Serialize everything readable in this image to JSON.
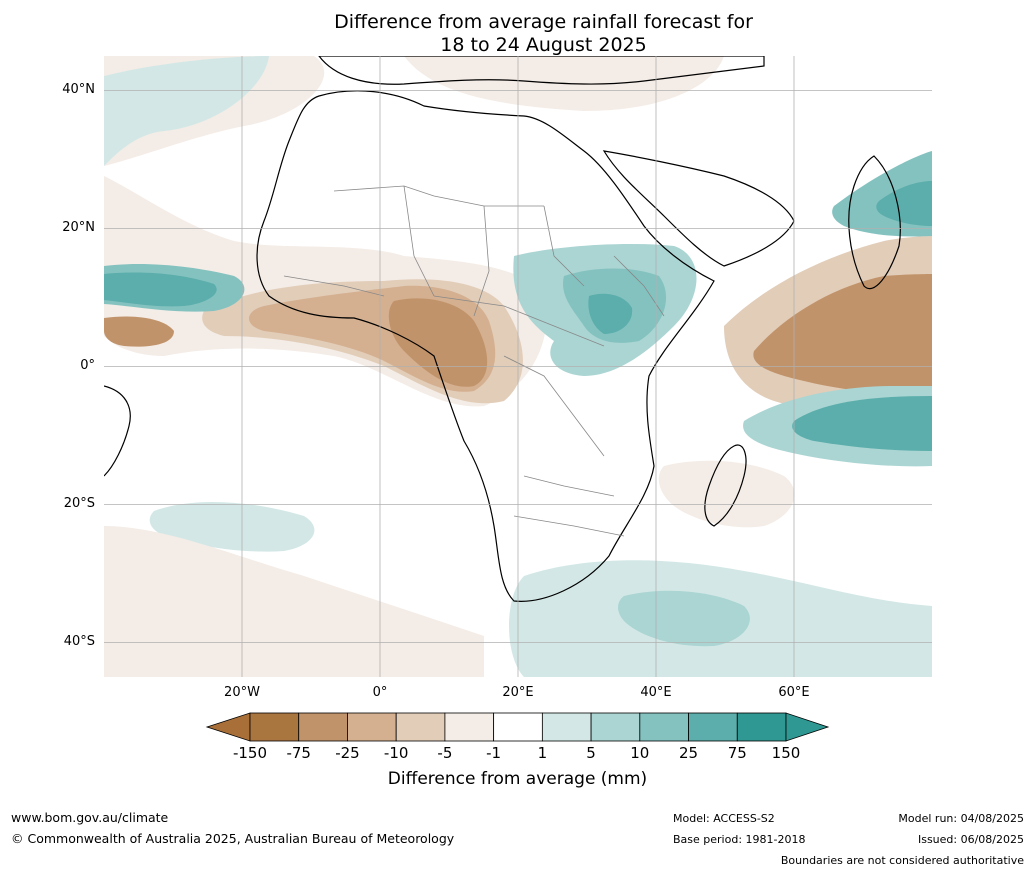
{
  "title": {
    "line1": "Difference from average rainfall forecast for",
    "line2": "18 to 24 August 2025"
  },
  "map": {
    "region": "Africa and surrounding oceans",
    "lat_range": [
      -45,
      45
    ],
    "lon_range": [
      -40,
      80
    ],
    "lat_ticks": [
      {
        "value": 40,
        "label": "40°N"
      },
      {
        "value": 20,
        "label": "20°N"
      },
      {
        "value": 0,
        "label": "0°"
      },
      {
        "value": -20,
        "label": "20°S"
      },
      {
        "value": -40,
        "label": "40°S"
      }
    ],
    "lon_ticks": [
      {
        "value": -20,
        "label": "20°W"
      },
      {
        "value": 0,
        "label": "0°"
      },
      {
        "value": 20,
        "label": "20°E"
      },
      {
        "value": 40,
        "label": "40°E"
      },
      {
        "value": 60,
        "label": "60°E"
      }
    ],
    "grid": true
  },
  "colorbar": {
    "title": "Difference from average (mm)",
    "tick_labels": [
      "-150",
      "-75",
      "-25",
      "-10",
      "-5",
      "-1",
      "1",
      "5",
      "10",
      "25",
      "75",
      "150"
    ],
    "colors": [
      "#a86f39",
      "#a97640",
      "#c1936a",
      "#d4b090",
      "#e2cdb9",
      "#f4ece6",
      "#ffffff",
      "#d3e8e6",
      "#abd5d3",
      "#84c2c0",
      "#5baeab",
      "#2f9893",
      "#2f9893"
    ],
    "extend": "both"
  },
  "footer": {
    "site": "www.bom.gov.au/climate",
    "copyright": "© Commonwealth of Australia 2025, Australian Bureau of Meteorology",
    "model": "Model: ACCESS-S2",
    "base_period": "Base period: 1981-2018",
    "model_run": "Model run: 04/08/2025",
    "issued": "Issued: 06/08/2025",
    "disclaimer": "Boundaries are not considered authoritative"
  }
}
